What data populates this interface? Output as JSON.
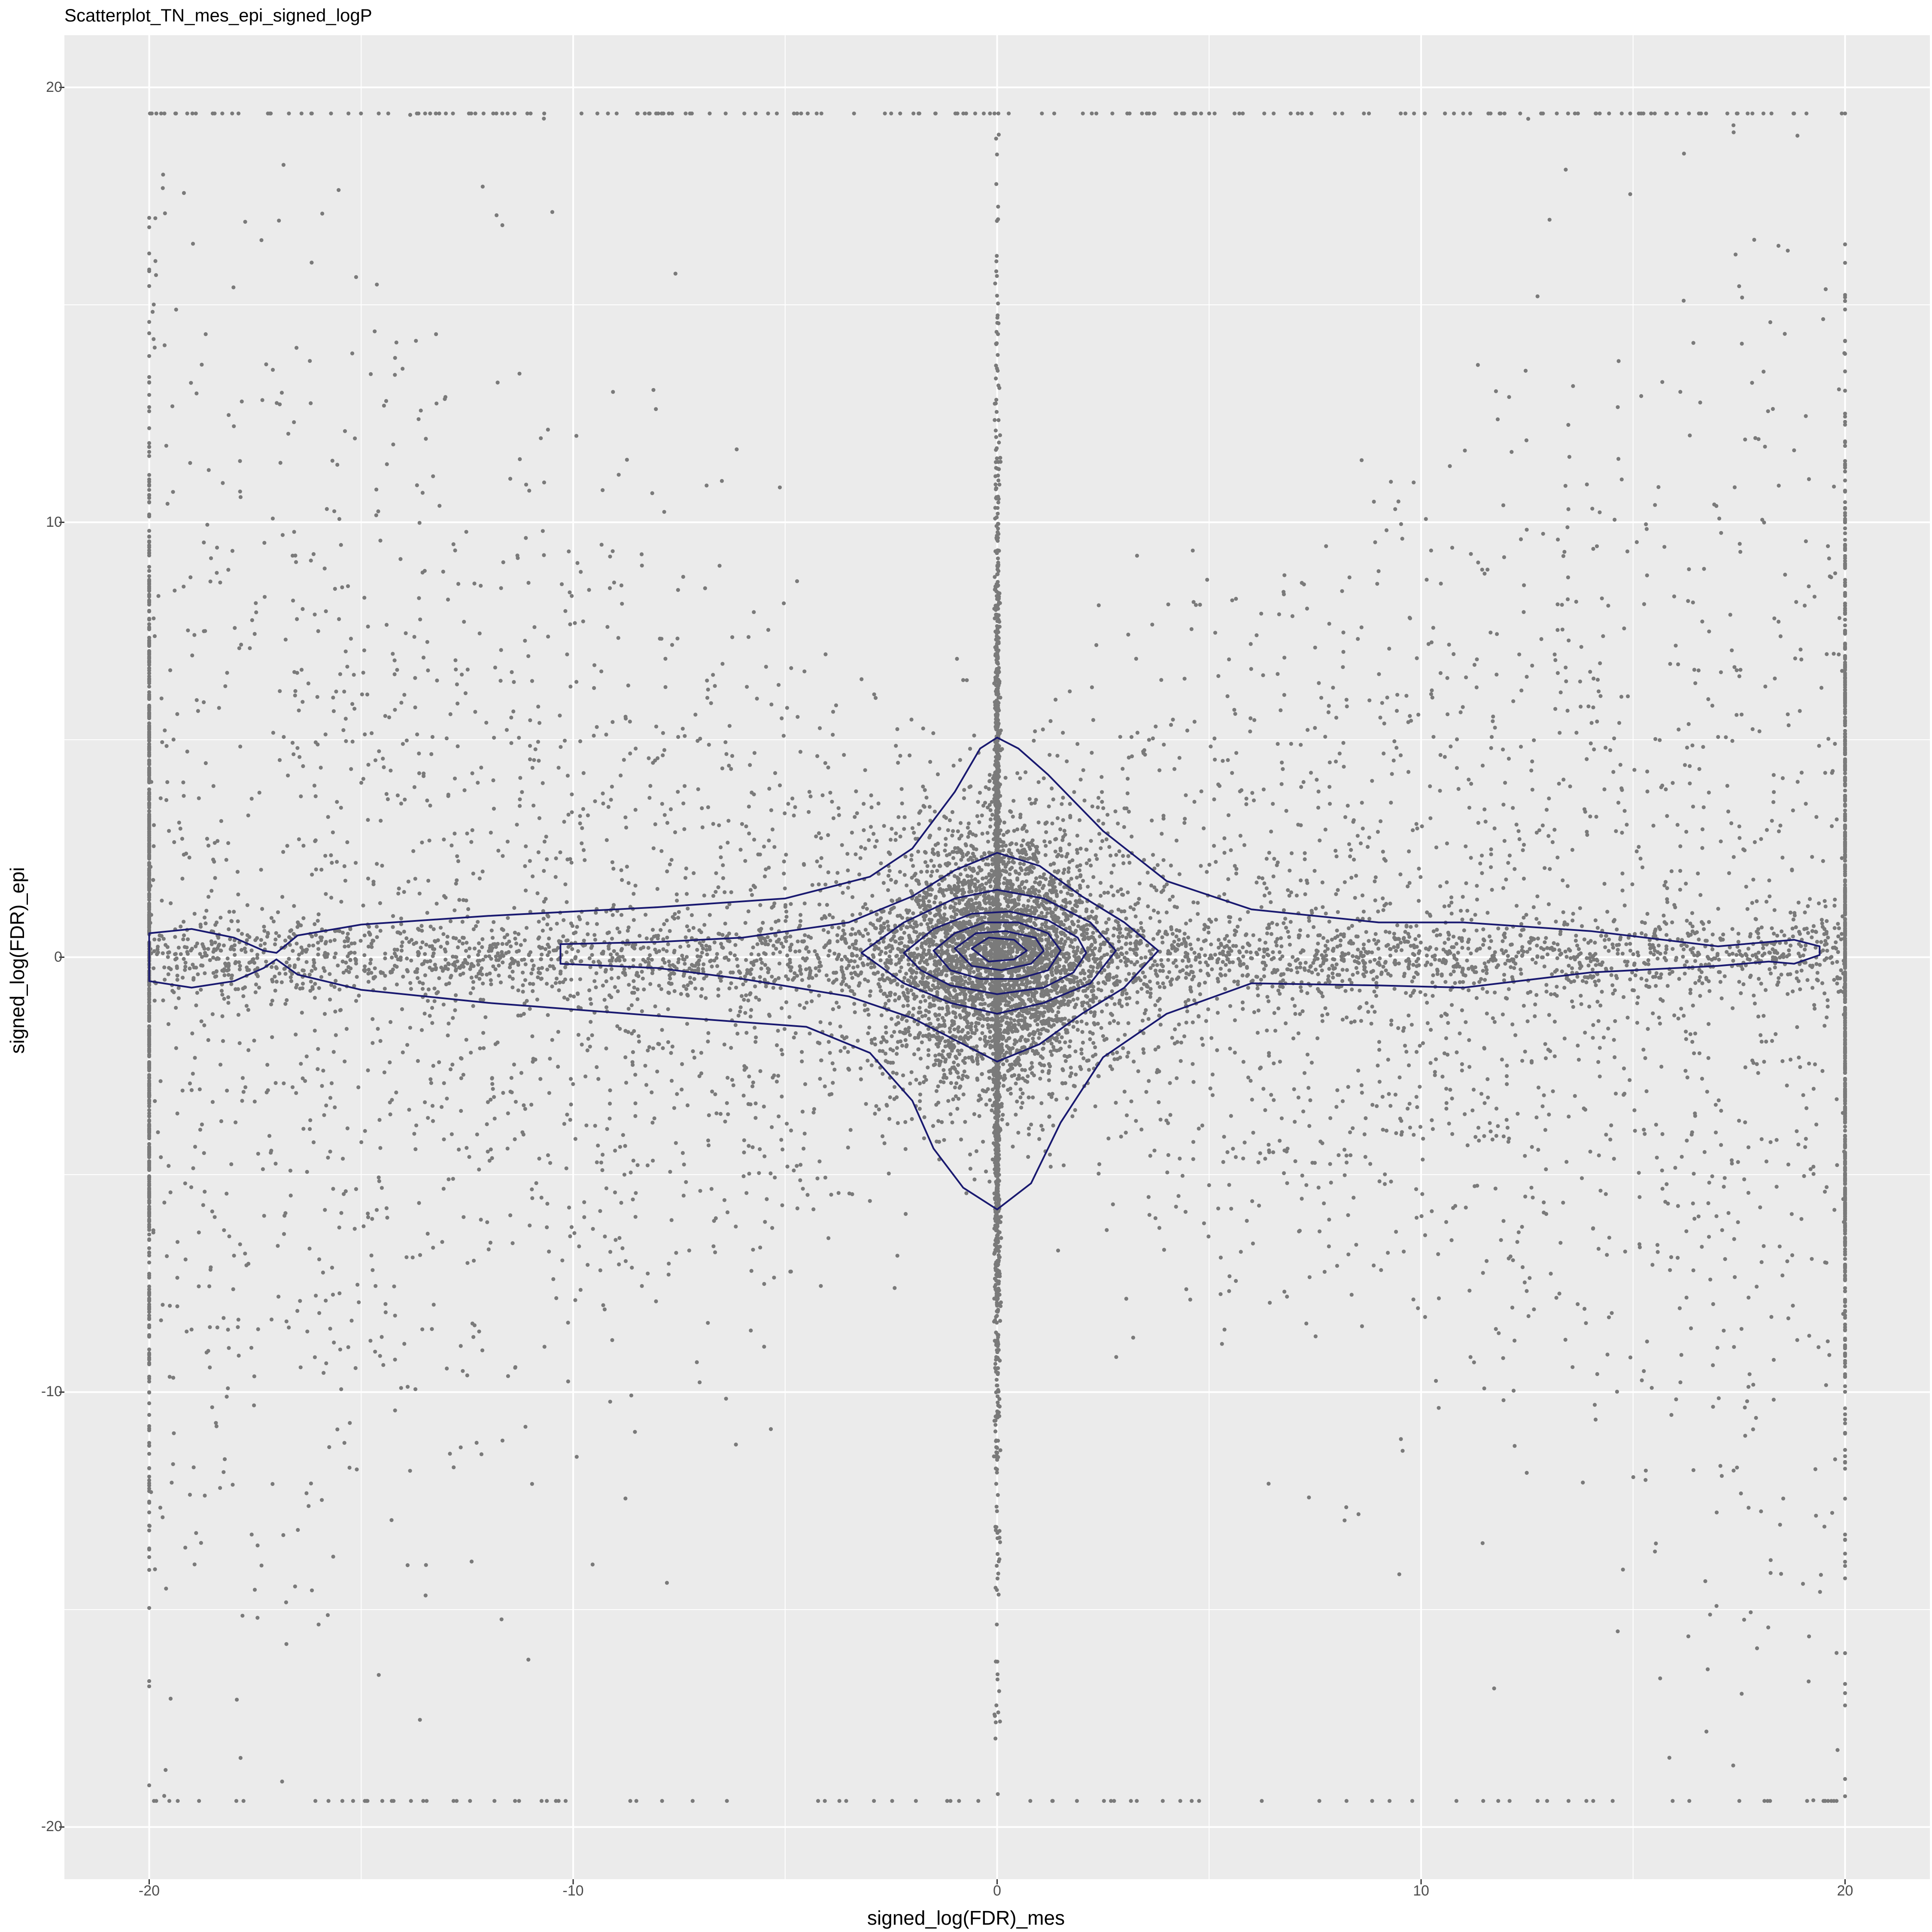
{
  "chart_data": {
    "type": "scatter",
    "title": "Scatterplot_TN_mes_epi_signed_logP",
    "xlabel": "signed_log(FDR)_mes",
    "ylabel": "signed_log(FDR)_epi",
    "xlim": [
      -22.0,
      22.0
    ],
    "ylim": [
      -21.2,
      21.2
    ],
    "xticks": [
      -20,
      -10,
      0,
      10,
      20
    ],
    "yticks": [
      -20,
      -10,
      0,
      10,
      20
    ],
    "xticklabels": [
      "-20",
      "-10",
      "0",
      "10",
      "20"
    ],
    "yticklabels": [
      "-20",
      "-10",
      "0",
      "10",
      "20"
    ],
    "grid": true,
    "background": "#EBEBEB",
    "point_color": "#7A7A7A",
    "contour_color": "#191970",
    "layers": [
      {
        "kind": "points",
        "description": "approx. 12000 genes; dense band near y=0 and x=0, clusters at x=-20 and x=20, y capped at about ±19.4"
      },
      {
        "kind": "density_contours",
        "levels": 7
      }
    ],
    "contours": [
      {
        "points": [
          [
            -20,
            0.55
          ],
          [
            -19,
            0.65
          ],
          [
            -18,
            0.45
          ],
          [
            -17.3,
            0.15
          ],
          [
            -17,
            0.1
          ],
          [
            -16.5,
            0.5
          ],
          [
            -15,
            0.75
          ],
          [
            -12,
            0.95
          ],
          [
            -8,
            1.15
          ],
          [
            -5,
            1.35
          ],
          [
            -3,
            1.85
          ],
          [
            -2,
            2.5
          ],
          [
            -1,
            3.8
          ],
          [
            -0.4,
            4.8
          ],
          [
            0,
            5.05
          ],
          [
            0.5,
            4.8
          ],
          [
            1.2,
            4.2
          ],
          [
            2.5,
            2.9
          ],
          [
            4,
            1.75
          ],
          [
            6,
            1.1
          ],
          [
            9,
            0.8
          ],
          [
            11,
            0.8
          ],
          [
            14,
            0.6
          ],
          [
            17,
            0.25
          ],
          [
            18.2,
            0.35
          ],
          [
            18.8,
            0.4
          ],
          [
            19.4,
            0.25
          ],
          [
            19.4,
            0.05
          ],
          [
            18.8,
            -0.15
          ],
          [
            18.2,
            -0.1
          ],
          [
            17,
            -0.2
          ],
          [
            14,
            -0.35
          ],
          [
            11,
            -0.7
          ],
          [
            9,
            -0.65
          ],
          [
            6,
            -0.6
          ],
          [
            4,
            -1.3
          ],
          [
            2.5,
            -2.3
          ],
          [
            1.5,
            -3.8
          ],
          [
            0.8,
            -5.2
          ],
          [
            0,
            -5.8
          ],
          [
            -0.8,
            -5.3
          ],
          [
            -1.5,
            -4.4
          ],
          [
            -2,
            -3.3
          ],
          [
            -3,
            -2.2
          ],
          [
            -4.5,
            -1.6
          ],
          [
            -8,
            -1.35
          ],
          [
            -12,
            -1.05
          ],
          [
            -15,
            -0.75
          ],
          [
            -16.5,
            -0.4
          ],
          [
            -17,
            -0.05
          ],
          [
            -17.3,
            -0.25
          ],
          [
            -18,
            -0.55
          ],
          [
            -19,
            -0.7
          ],
          [
            -20,
            -0.55
          ]
        ]
      },
      {
        "points": [
          [
            -10.3,
            0.3
          ],
          [
            -8,
            0.35
          ],
          [
            -6,
            0.45
          ],
          [
            -3.5,
            0.8
          ],
          [
            -2,
            1.4
          ],
          [
            -1,
            2.0
          ],
          [
            0,
            2.4
          ],
          [
            1,
            2.1
          ],
          [
            2,
            1.4
          ],
          [
            3,
            0.8
          ],
          [
            3.8,
            0.15
          ],
          [
            3,
            -0.7
          ],
          [
            2,
            -1.3
          ],
          [
            1,
            -2.0
          ],
          [
            0,
            -2.4
          ],
          [
            -1,
            -1.9
          ],
          [
            -2,
            -1.4
          ],
          [
            -3.5,
            -0.9
          ],
          [
            -6,
            -0.5
          ],
          [
            -8,
            -0.25
          ],
          [
            -10.3,
            -0.15
          ]
        ]
      },
      {
        "points": [
          [
            -3.2,
            0.1
          ],
          [
            -2.2,
            0.8
          ],
          [
            -1,
            1.35
          ],
          [
            0,
            1.55
          ],
          [
            1.1,
            1.35
          ],
          [
            2.2,
            0.8
          ],
          [
            2.8,
            0.15
          ],
          [
            2.2,
            -0.6
          ],
          [
            1.1,
            -1.05
          ],
          [
            0,
            -1.3
          ],
          [
            -1.1,
            -1.05
          ],
          [
            -2.2,
            -0.6
          ]
        ]
      },
      {
        "points": [
          [
            -2.2,
            0.1
          ],
          [
            -1.5,
            0.65
          ],
          [
            -0.6,
            1.0
          ],
          [
            0.3,
            1.05
          ],
          [
            1.2,
            0.85
          ],
          [
            1.9,
            0.45
          ],
          [
            2.1,
            0.1
          ],
          [
            1.8,
            -0.35
          ],
          [
            1.1,
            -0.7
          ],
          [
            0,
            -0.85
          ],
          [
            -1.1,
            -0.65
          ],
          [
            -1.8,
            -0.3
          ]
        ]
      },
      {
        "points": [
          [
            -1.5,
            0.15
          ],
          [
            -1.0,
            0.55
          ],
          [
            -0.3,
            0.8
          ],
          [
            0.5,
            0.8
          ],
          [
            1.2,
            0.55
          ],
          [
            1.5,
            0.15
          ],
          [
            1.2,
            -0.3
          ],
          [
            0.5,
            -0.5
          ],
          [
            -0.4,
            -0.5
          ],
          [
            -1.1,
            -0.3
          ]
        ]
      },
      {
        "points": [
          [
            -1.0,
            0.2
          ],
          [
            -0.5,
            0.55
          ],
          [
            0.2,
            0.6
          ],
          [
            0.9,
            0.45
          ],
          [
            1.1,
            0.15
          ],
          [
            0.8,
            -0.15
          ],
          [
            0.1,
            -0.3
          ],
          [
            -0.6,
            -0.2
          ]
        ]
      },
      {
        "points": [
          [
            -0.6,
            0.2
          ],
          [
            -0.2,
            0.45
          ],
          [
            0.4,
            0.4
          ],
          [
            0.7,
            0.15
          ],
          [
            0.4,
            -0.05
          ],
          [
            -0.2,
            -0.1
          ]
        ]
      }
    ]
  }
}
